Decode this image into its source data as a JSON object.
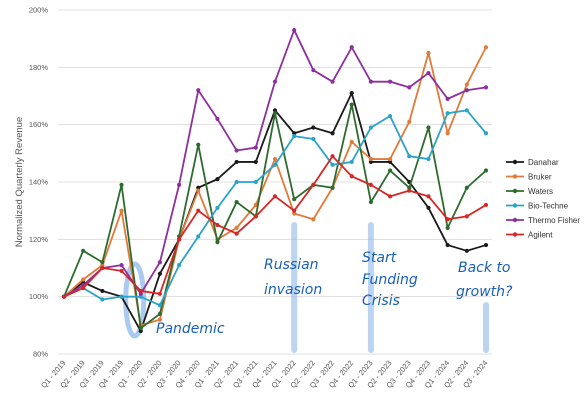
{
  "chart_data": {
    "type": "line",
    "ylabel": "Normalized Quarterly Revenue",
    "xlabel": "",
    "ylim": [
      0.8,
      2.0
    ],
    "yticks": [
      0.8,
      1.0,
      1.2,
      1.4,
      1.6,
      1.8,
      2.0
    ],
    "ytick_labels": [
      "80%",
      "100%",
      "120%",
      "140%",
      "160%",
      "180%",
      "200%"
    ],
    "grid": "horizontal",
    "legend": "right",
    "categories": [
      "Q1 - 2019",
      "Q2 - 2019",
      "Q3 - 2019",
      "Q4 - 2019",
      "Q1 - 2020",
      "Q2 - 2020",
      "Q3 - 2020",
      "Q4 - 2020",
      "Q1 - 2021",
      "Q2 - 2021",
      "Q3 - 2021",
      "Q4 - 2021",
      "Q1 - 2022",
      "Q2 - 2022",
      "Q3 - 2022",
      "Q4 - 2022",
      "Q1 - 2023",
      "Q2 - 2023",
      "Q3 - 2023",
      "Q4 - 2023",
      "Q1 - 2024",
      "Q2 - 2024",
      "Q3 - 2024"
    ],
    "series": [
      {
        "name": "Danahar",
        "color": "#1a1a1a",
        "values": [
          1.0,
          1.05,
          1.02,
          1.0,
          0.88,
          1.08,
          1.2,
          1.38,
          1.41,
          1.47,
          1.47,
          1.65,
          1.57,
          1.59,
          1.57,
          1.71,
          1.47,
          1.47,
          1.4,
          1.31,
          1.18,
          1.16,
          1.18
        ]
      },
      {
        "name": "Bruker",
        "color": "#e07b39",
        "values": [
          1.0,
          1.06,
          1.11,
          1.3,
          0.9,
          0.92,
          1.2,
          1.37,
          1.2,
          1.24,
          1.32,
          1.48,
          1.29,
          1.27,
          1.38,
          1.54,
          1.48,
          1.48,
          1.61,
          1.85,
          1.57,
          1.74,
          1.87
        ]
      },
      {
        "name": "Waters",
        "color": "#2e6b2e",
        "values": [
          1.0,
          1.16,
          1.12,
          1.39,
          0.89,
          0.94,
          1.21,
          1.53,
          1.19,
          1.33,
          1.28,
          1.64,
          1.34,
          1.39,
          1.38,
          1.67,
          1.33,
          1.44,
          1.38,
          1.59,
          1.24,
          1.38,
          1.44
        ]
      },
      {
        "name": "Bio-Techne",
        "color": "#2ba3c9",
        "values": [
          1.0,
          1.03,
          0.99,
          1.0,
          1.0,
          0.97,
          1.11,
          1.21,
          1.31,
          1.4,
          1.4,
          1.46,
          1.56,
          1.55,
          1.46,
          1.47,
          1.59,
          1.63,
          1.49,
          1.48,
          1.64,
          1.65,
          1.57
        ]
      },
      {
        "name": "Thermo Fisher",
        "color": "#8e2f9e",
        "values": [
          1.0,
          1.04,
          1.1,
          1.11,
          1.01,
          1.12,
          1.39,
          1.72,
          1.62,
          1.51,
          1.52,
          1.75,
          1.93,
          1.79,
          1.75,
          1.87,
          1.75,
          1.75,
          1.73,
          1.78,
          1.69,
          1.72,
          1.73
        ]
      },
      {
        "name": "Agilent",
        "color": "#d62728",
        "values": [
          1.0,
          1.03,
          1.1,
          1.09,
          1.02,
          1.01,
          1.2,
          1.3,
          1.25,
          1.22,
          1.28,
          1.35,
          1.3,
          1.39,
          1.49,
          1.42,
          1.39,
          1.35,
          1.37,
          1.35,
          1.27,
          1.28,
          1.32
        ]
      }
    ],
    "annotations": [
      {
        "text": "Pandemic",
        "category": "Q1 - 2020"
      },
      {
        "text": "Russian invasion",
        "category": "Q1 - 2022"
      },
      {
        "text": "Start Funding Crisis",
        "category": "Q1 - 2023"
      },
      {
        "text": "Back to growth?",
        "category": "Q3 - 2024"
      }
    ]
  }
}
